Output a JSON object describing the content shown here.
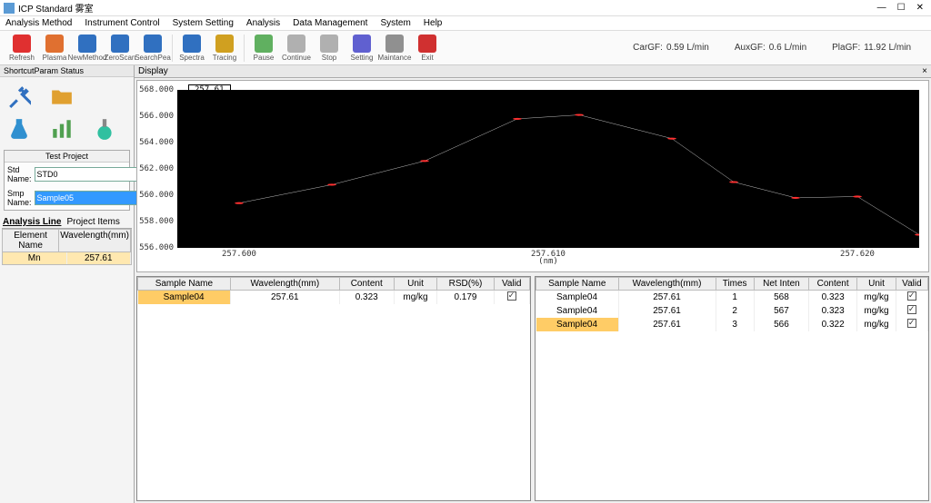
{
  "window": {
    "title": "ICP Standard 雾室"
  },
  "menu": [
    "Analysis Method",
    "Instrument Control",
    "System Setting",
    "Analysis",
    "Data Management",
    "System",
    "Help"
  ],
  "toolbar": [
    {
      "label": "Refresh",
      "color": "#e03030"
    },
    {
      "label": "Plasma",
      "color": "#e07030"
    },
    {
      "label": "NewMethod",
      "color": "#3070c0"
    },
    {
      "label": "ZeroScan",
      "color": "#3070c0"
    },
    {
      "label": "SearchPea",
      "color": "#3070c0"
    },
    {
      "label": "Spectra",
      "color": "#3070c0"
    },
    {
      "label": "Tracing",
      "color": "#d0a020"
    },
    {
      "label": "Pause",
      "color": "#60b060"
    },
    {
      "label": "Continue",
      "color": "#b0b0b0"
    },
    {
      "label": "Stop",
      "color": "#b0b0b0"
    },
    {
      "label": "Setting",
      "color": "#6060d0"
    },
    {
      "label": "Maintance",
      "color": "#909090"
    },
    {
      "label": "Exit",
      "color": "#d03030"
    }
  ],
  "gas": [
    {
      "label": "CarGF:",
      "value": "0.59",
      "unit": "L/min"
    },
    {
      "label": "AuxGF:",
      "value": "0.6",
      "unit": "L/min"
    },
    {
      "label": "PlaGF:",
      "value": "11.92",
      "unit": "L/min"
    }
  ],
  "leftPanel": {
    "header": "ShortcutParam Status",
    "testProject": {
      "title": "Test Project",
      "stdLabel": "Std Name:",
      "stdValue": "STD0",
      "smpLabel": "Smp Name:",
      "smpValue": "Sample05"
    },
    "analysisLine": {
      "left": "Analysis Line",
      "right": "Project Items"
    },
    "miniTable": {
      "h1": "Element Name",
      "h2": "Wavelength(mm)",
      "rows": [
        [
          "Mn",
          "257.61"
        ]
      ]
    }
  },
  "display": {
    "title": "Display",
    "closeIcon": "×"
  },
  "chart": {
    "label": "257.61",
    "background": "#000000",
    "lineColor": "#f0f0f0",
    "markerColor": "#ff3030",
    "yTicks": [
      556.0,
      558.0,
      560.0,
      562.0,
      564.0,
      566.0,
      568.0
    ],
    "yMin": 556,
    "yMax": 568,
    "xTicks": [
      257.6,
      257.61,
      257.62
    ],
    "xMin": 257.598,
    "xMax": 257.622,
    "xlabel": "(nm)",
    "points": [
      {
        "x": 257.6,
        "y": 559.4
      },
      {
        "x": 257.603,
        "y": 560.8
      },
      {
        "x": 257.606,
        "y": 562.6
      },
      {
        "x": 257.609,
        "y": 565.8
      },
      {
        "x": 257.611,
        "y": 566.1
      },
      {
        "x": 257.614,
        "y": 564.3
      },
      {
        "x": 257.616,
        "y": 561.0
      },
      {
        "x": 257.618,
        "y": 559.8
      },
      {
        "x": 257.62,
        "y": 559.9
      },
      {
        "x": 257.622,
        "y": 557.0
      }
    ]
  },
  "tableLeft": {
    "headers": [
      "Sample Name",
      "Wavelength(mm)",
      "Content",
      "Unit",
      "RSD(%)",
      "Valid"
    ],
    "rows": [
      {
        "sample": "Sample04",
        "wl": "257.61",
        "content": "0.323",
        "unit": "mg/kg",
        "rsd": "0.179",
        "valid": true,
        "hl": true
      }
    ]
  },
  "tableRight": {
    "headers": [
      "Sample Name",
      "Wavelength(mm)",
      "Times",
      "Net Inten",
      "Content",
      "Unit",
      "Valid"
    ],
    "rows": [
      {
        "sample": "Sample04",
        "wl": "257.61",
        "times": "1",
        "net": "568",
        "content": "0.323",
        "unit": "mg/kg",
        "valid": true
      },
      {
        "sample": "Sample04",
        "wl": "257.61",
        "times": "2",
        "net": "567",
        "content": "0.323",
        "unit": "mg/kg",
        "valid": true
      },
      {
        "sample": "Sample04",
        "wl": "257.61",
        "times": "3",
        "net": "566",
        "content": "0.322",
        "unit": "mg/kg",
        "valid": true,
        "hl": true
      }
    ]
  }
}
